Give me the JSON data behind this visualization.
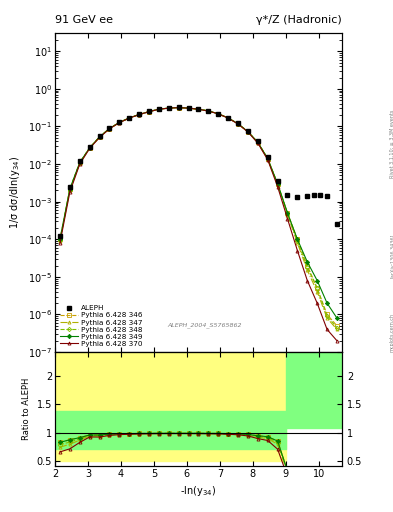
{
  "title_left": "91 GeV ee",
  "title_right": "γ*/Z (Hadronic)",
  "ylabel_main": "1/σ dσ/dln(y$_{34}$)",
  "ylabel_ratio": "Ratio to ALEPH",
  "xlabel": "-ln(y$_{34}$)",
  "watermark": "ALEPH_2004_S5765862",
  "right_label": "Rivet 3.1.10; ≥ 3.3M events",
  "arxiv_label": "[arXiv:1306.3436]",
  "mcplots_label": "mcplots.cern.ch",
  "xlim": [
    2,
    10.7
  ],
  "ylim_main": [
    1e-07,
    30
  ],
  "ylim_ratio": [
    0.42,
    2.42
  ],
  "ratio_yticks": [
    0.5,
    1.0,
    1.5,
    2.0
  ],
  "legend_entries": [
    "ALEPH",
    "Pythia 6.428 346",
    "Pythia 6.428 347",
    "Pythia 6.428 348",
    "Pythia 6.428 349",
    "Pythia 6.428 370"
  ],
  "aleph_x": [
    2.15,
    2.45,
    2.75,
    3.05,
    3.35,
    3.65,
    3.95,
    4.25,
    4.55,
    4.85,
    5.15,
    5.45,
    5.75,
    6.05,
    6.35,
    6.65,
    6.95,
    7.25,
    7.55,
    7.85,
    8.15,
    8.45,
    8.75,
    9.05,
    9.35,
    9.65,
    9.85,
    10.05,
    10.25,
    10.55
  ],
  "aleph_y": [
    0.00012,
    0.0025,
    0.012,
    0.028,
    0.055,
    0.09,
    0.13,
    0.17,
    0.21,
    0.25,
    0.29,
    0.31,
    0.32,
    0.31,
    0.29,
    0.26,
    0.22,
    0.17,
    0.12,
    0.075,
    0.04,
    0.015,
    0.0035,
    0.0015,
    0.0013,
    0.0014,
    0.0015,
    0.0015,
    0.0014,
    0.00025
  ],
  "mc_x": [
    2.15,
    2.45,
    2.75,
    3.05,
    3.35,
    3.65,
    3.95,
    4.25,
    4.55,
    4.85,
    5.15,
    5.45,
    5.75,
    6.05,
    6.35,
    6.65,
    6.95,
    7.25,
    7.55,
    7.85,
    8.15,
    8.45,
    8.75,
    9.05,
    9.35,
    9.65,
    9.95,
    10.25,
    10.55
  ],
  "mc346_y": [
    0.0001,
    0.0022,
    0.011,
    0.027,
    0.053,
    0.088,
    0.128,
    0.168,
    0.208,
    0.248,
    0.288,
    0.308,
    0.318,
    0.308,
    0.288,
    0.258,
    0.218,
    0.168,
    0.118,
    0.073,
    0.038,
    0.014,
    0.003,
    0.0005,
    0.0001,
    2e-05,
    5e-06,
    1e-06,
    5e-07
  ],
  "mc347_y": [
    9e-05,
    0.002,
    0.0105,
    0.0265,
    0.052,
    0.087,
    0.127,
    0.167,
    0.207,
    0.247,
    0.287,
    0.307,
    0.317,
    0.307,
    0.287,
    0.257,
    0.217,
    0.167,
    0.117,
    0.072,
    0.037,
    0.0135,
    0.0028,
    0.00045,
    8e-05,
    1.5e-05,
    4e-06,
    8e-07,
    4e-07
  ],
  "mc348_y": [
    9.5e-05,
    0.0021,
    0.0108,
    0.0268,
    0.0525,
    0.0875,
    0.1275,
    0.1675,
    0.2075,
    0.2475,
    0.2875,
    0.3075,
    0.3175,
    0.3075,
    0.2875,
    0.2575,
    0.2175,
    0.1675,
    0.1175,
    0.0725,
    0.0375,
    0.0138,
    0.0029,
    0.00048,
    9e-05,
    1.8e-05,
    5e-06,
    9e-07,
    4.5e-07
  ],
  "mc349_y": [
    0.0001,
    0.0022,
    0.011,
    0.027,
    0.053,
    0.088,
    0.128,
    0.168,
    0.208,
    0.248,
    0.288,
    0.308,
    0.318,
    0.308,
    0.288,
    0.258,
    0.218,
    0.168,
    0.118,
    0.073,
    0.038,
    0.014,
    0.003,
    0.0005,
    0.0001,
    2.5e-05,
    8e-06,
    2e-06,
    8e-07
  ],
  "mc370_y": [
    8e-05,
    0.0018,
    0.01,
    0.026,
    0.051,
    0.086,
    0.126,
    0.166,
    0.206,
    0.246,
    0.286,
    0.306,
    0.316,
    0.306,
    0.286,
    0.256,
    0.216,
    0.166,
    0.116,
    0.071,
    0.036,
    0.013,
    0.0025,
    0.00035,
    5e-05,
    8e-06,
    2e-06,
    4e-07,
    2e-07
  ],
  "color346": "#c8a000",
  "color347": "#b0b000",
  "color348": "#80c000",
  "color349": "#008000",
  "color370": "#800000",
  "yellow_color": "#ffff80",
  "green_color": "#80ff80"
}
